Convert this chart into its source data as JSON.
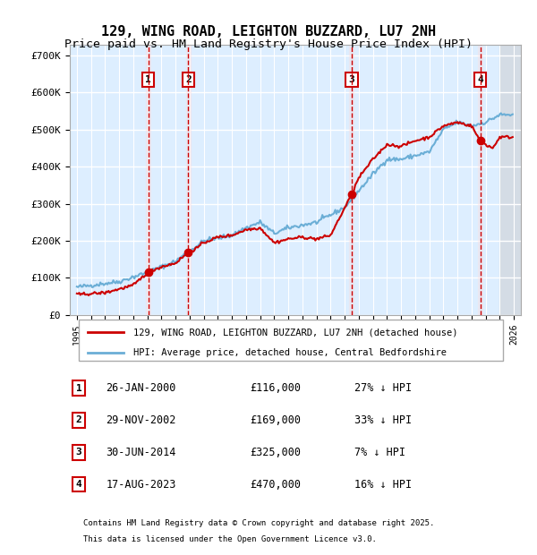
{
  "title": "129, WING ROAD, LEIGHTON BUZZARD, LU7 2NH",
  "subtitle": "Price paid vs. HM Land Registry's House Price Index (HPI)",
  "hpi_label": "HPI: Average price, detached house, Central Bedfordshire",
  "property_label": "129, WING ROAD, LEIGHTON BUZZARD, LU7 2NH (detached house)",
  "footer1": "Contains HM Land Registry data © Crown copyright and database right 2025.",
  "footer2": "This data is licensed under the Open Government Licence v3.0.",
  "transactions": [
    {
      "num": 1,
      "date": "26-JAN-2000",
      "price": 116000,
      "pct": "27%",
      "direction": "↓",
      "year": 2000.07
    },
    {
      "num": 2,
      "date": "29-NOV-2002",
      "price": 169000,
      "pct": "33%",
      "direction": "↓",
      "year": 2002.91
    },
    {
      "num": 3,
      "date": "30-JUN-2014",
      "price": 325000,
      "pct": "7%",
      "direction": "↓",
      "year": 2014.49
    },
    {
      "num": 4,
      "date": "17-AUG-2023",
      "price": 470000,
      "pct": "16%",
      "direction": "↓",
      "year": 2023.62
    }
  ],
  "ylim": [
    0,
    730000
  ],
  "xlim": [
    1994.5,
    2026.5
  ],
  "yticks": [
    0,
    100000,
    200000,
    300000,
    400000,
    500000,
    600000,
    700000
  ],
  "ytick_labels": [
    "£0",
    "£100K",
    "£200K",
    "£300K",
    "£400K",
    "£500K",
    "£600K",
    "£700K"
  ],
  "hpi_color": "#6baed6",
  "property_color": "#cc0000",
  "marker_color": "#cc0000",
  "dashed_color": "#cc0000",
  "background_color": "#ddeeff",
  "grid_color": "#ffffff",
  "hatch_color": "#cccccc",
  "title_fontsize": 11,
  "subtitle_fontsize": 9.5,
  "tick_fontsize": 8
}
